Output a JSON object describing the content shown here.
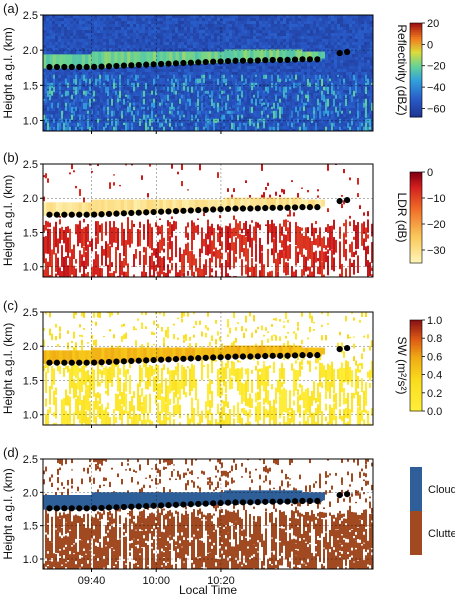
{
  "chart_data": [
    {
      "type": "heatmap",
      "panel_label": "(a)",
      "ylabel": "Height a.g.l. (km)",
      "ylim": [
        0.85,
        2.5
      ],
      "yticks": [
        "2.5",
        "2.0",
        "1.5",
        "1.0"
      ],
      "xticks": [
        "09:40",
        "10:00",
        "10:20"
      ],
      "colorbar": {
        "label": "Reflectivity (dBZ)",
        "ticks": [
          "20",
          "0",
          "−20",
          "−40",
          "−60"
        ],
        "range": [
          -68,
          20
        ]
      },
      "markers": {
        "name": "cloud base",
        "x_min": [
          0,
          15,
          25,
          35,
          40,
          45,
          50,
          55,
          60,
          65,
          70,
          72,
          77,
          80
        ],
        "y_km": [
          1.76,
          1.79,
          1.81,
          1.83,
          1.84,
          1.85,
          1.85,
          1.86,
          1.86,
          1.87,
          1.87,
          1.93,
          1.96,
          1.98
        ]
      },
      "layers": [
        {
          "label": "cloud",
          "y_km": [
            1.8,
            1.98
          ],
          "value": -15
        },
        {
          "label": "clutter",
          "y_km": [
            0.85,
            1.65
          ],
          "value": -40
        }
      ]
    },
    {
      "type": "heatmap",
      "panel_label": "(b)",
      "ylabel": "Height a.g.l. (km)",
      "ylim": [
        0.85,
        2.5
      ],
      "yticks": [
        "2.5",
        "2.0",
        "1.5",
        "1.0"
      ],
      "xticks": [
        "09:40",
        "10:00",
        "10:20"
      ],
      "colorbar": {
        "label": "LDR (dB)",
        "ticks": [
          "0",
          "−10",
          "−20",
          "−30"
        ],
        "range": [
          -35,
          0
        ]
      },
      "markers": {
        "name": "cloud base"
      },
      "layers": [
        {
          "label": "cloud",
          "y_km": [
            1.8,
            1.98
          ],
          "value": -32
        },
        {
          "label": "clutter",
          "y_km": [
            0.85,
            1.55
          ],
          "value": -8
        }
      ]
    },
    {
      "type": "heatmap",
      "panel_label": "(c)",
      "ylabel": "Height a.g.l. (km)",
      "ylim": [
        0.85,
        2.5
      ],
      "yticks": [
        "2.5",
        "2.0",
        "1.5",
        "1.0"
      ],
      "xticks": [
        "09:40",
        "10:00",
        "10:20"
      ],
      "colorbar": {
        "label": "SW (m²/s²)",
        "ticks": [
          "1.0",
          "0.8",
          "0.6",
          "0.4",
          "0.2",
          "0.0"
        ],
        "range": [
          0,
          1
        ]
      },
      "markers": {
        "name": "cloud base"
      },
      "layers": [
        {
          "label": "cloud",
          "y_km": [
            1.8,
            1.98
          ],
          "value": 0.5
        },
        {
          "label": "clutter",
          "y_km": [
            0.85,
            1.65
          ],
          "value": 0.15
        }
      ]
    },
    {
      "type": "heatmap",
      "panel_label": "(d)",
      "ylabel": "Height a.g.l. (km)",
      "xlabel": "Local Time",
      "ylim": [
        0.85,
        2.5
      ],
      "yticks": [
        "2.5",
        "2.0",
        "1.5",
        "1.0"
      ],
      "xticks": [
        "09:40",
        "10:00",
        "10:20"
      ],
      "colorbar": {
        "label": "",
        "ticks": [
          "Cloud",
          "Clutter"
        ],
        "categories": [
          "Cloud",
          "Clutter"
        ]
      },
      "markers": {
        "name": "cloud base"
      },
      "layers": [
        {
          "label": "Cloud",
          "y_km": [
            1.78,
            2.0
          ]
        },
        {
          "label": "Clutter",
          "y_km": [
            0.85,
            1.6
          ]
        }
      ]
    }
  ],
  "colors": {
    "cloud_class": "#2f5f98",
    "clutter_class": "#a14a22",
    "marker": "#000000",
    "background": "#ffffff"
  }
}
